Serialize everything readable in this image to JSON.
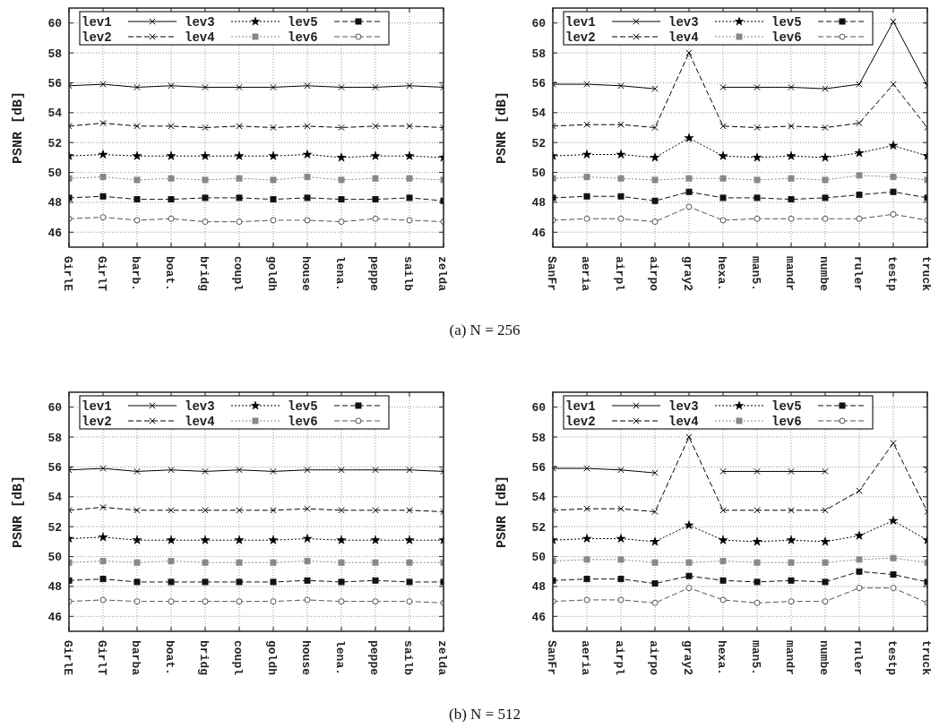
{
  "chart_data": [
    {
      "type": "line",
      "ylabel": "PSNR [dB]",
      "annotations": [
        "(a) N = 256"
      ],
      "categories": [
        "GirlE",
        "GirlT",
        "barb.",
        "boat.",
        "bridg",
        "coupl",
        "goldh",
        "house",
        "lena.",
        "peppe",
        "sailb",
        "zelda"
      ],
      "ylim": [
        45,
        61
      ],
      "yticks": [
        46,
        48,
        50,
        52,
        54,
        56,
        58,
        60
      ],
      "grid": true,
      "legend": "top left",
      "series": [
        {
          "name": "lev1",
          "color": "#000000",
          "marker": "cross",
          "line_style": "solid",
          "values": [
            55.8,
            55.9,
            55.7,
            55.8,
            55.7,
            55.7,
            55.7,
            55.8,
            55.7,
            55.7,
            55.8,
            55.7
          ]
        },
        {
          "name": "lev2",
          "color": "#000000",
          "marker": "cross",
          "line_style": "dashed",
          "values": [
            53.1,
            53.3,
            53.1,
            53.1,
            53.0,
            53.1,
            53.0,
            53.1,
            53.0,
            53.1,
            53.1,
            53.0
          ]
        },
        {
          "name": "lev3",
          "color": "#000000",
          "marker": "star",
          "line_style": "dotted",
          "values": [
            51.1,
            51.2,
            51.1,
            51.1,
            51.1,
            51.1,
            51.1,
            51.2,
            51.0,
            51.1,
            51.1,
            51.0
          ]
        },
        {
          "name": "lev4",
          "color": "#888888",
          "marker": "square",
          "line_style": "dotted",
          "values": [
            49.6,
            49.7,
            49.5,
            49.6,
            49.5,
            49.6,
            49.5,
            49.7,
            49.5,
            49.6,
            49.6,
            49.5
          ]
        },
        {
          "name": "lev5",
          "color": "#111111",
          "marker": "square",
          "line_style": "dashed",
          "values": [
            48.3,
            48.4,
            48.2,
            48.2,
            48.3,
            48.3,
            48.2,
            48.3,
            48.2,
            48.2,
            48.3,
            48.1
          ]
        },
        {
          "name": "lev6",
          "color": "#555555",
          "marker": "circle",
          "line_style": "dashed",
          "values": [
            46.9,
            47.0,
            46.8,
            46.9,
            46.7,
            46.7,
            46.8,
            46.8,
            46.7,
            46.9,
            46.8,
            46.7
          ]
        }
      ]
    },
    {
      "type": "line",
      "ylabel": "PSNR [dB]",
      "categories": [
        "SanFr",
        "aeria",
        "airpl",
        "airpo",
        "gray2",
        "hexa.",
        "man5.",
        "mandr",
        "numbe",
        "ruler",
        "testp",
        "truck"
      ],
      "ylim": [
        45,
        61
      ],
      "yticks": [
        46,
        48,
        50,
        52,
        54,
        56,
        58,
        60
      ],
      "grid": true,
      "legend": "top left",
      "series": [
        {
          "name": "lev1",
          "color": "#000000",
          "marker": "cross",
          "line_style": "solid",
          "values": [
            55.9,
            55.9,
            55.8,
            55.6,
            null,
            55.7,
            55.7,
            55.7,
            55.6,
            55.9,
            60.1,
            55.8
          ]
        },
        {
          "name": "lev2",
          "color": "#000000",
          "marker": "cross",
          "line_style": "dashed",
          "values": [
            53.1,
            53.2,
            53.2,
            53.0,
            58.0,
            53.1,
            53.0,
            53.1,
            53.0,
            53.3,
            55.9,
            53.0
          ]
        },
        {
          "name": "lev3",
          "color": "#000000",
          "marker": "star",
          "line_style": "dotted",
          "values": [
            51.1,
            51.2,
            51.2,
            51.0,
            52.3,
            51.1,
            51.0,
            51.1,
            51.0,
            51.3,
            51.8,
            51.1
          ]
        },
        {
          "name": "lev4",
          "color": "#888888",
          "marker": "square",
          "line_style": "dotted",
          "values": [
            49.6,
            49.7,
            49.6,
            49.5,
            49.6,
            49.6,
            49.5,
            49.6,
            49.5,
            49.8,
            49.7,
            49.5
          ]
        },
        {
          "name": "lev5",
          "color": "#111111",
          "marker": "square",
          "line_style": "dashed",
          "values": [
            48.3,
            48.4,
            48.4,
            48.1,
            48.7,
            48.3,
            48.3,
            48.2,
            48.3,
            48.5,
            48.7,
            48.3
          ]
        },
        {
          "name": "lev6",
          "color": "#555555",
          "marker": "circle",
          "line_style": "dashed",
          "values": [
            46.8,
            46.9,
            46.9,
            46.7,
            47.7,
            46.8,
            46.9,
            46.9,
            46.9,
            46.9,
            47.2,
            46.8
          ]
        }
      ]
    },
    {
      "type": "line",
      "ylabel": "PSNR [dB]",
      "annotations": [
        "(b) N = 512"
      ],
      "categories": [
        "GirlE",
        "GirlT",
        "barba",
        "boat.",
        "bridg",
        "coupl",
        "goldh",
        "house",
        "lena.",
        "peppe",
        "sailb",
        "zelda"
      ],
      "ylim": [
        45,
        61
      ],
      "yticks": [
        46,
        48,
        50,
        52,
        54,
        56,
        58,
        60
      ],
      "grid": true,
      "legend": "top left",
      "series": [
        {
          "name": "lev1",
          "color": "#000000",
          "marker": "cross",
          "line_style": "solid",
          "values": [
            55.8,
            55.9,
            55.7,
            55.8,
            55.7,
            55.8,
            55.7,
            55.8,
            55.8,
            55.8,
            55.8,
            55.7
          ]
        },
        {
          "name": "lev2",
          "color": "#000000",
          "marker": "cross",
          "line_style": "dashed",
          "values": [
            53.1,
            53.3,
            53.1,
            53.1,
            53.1,
            53.1,
            53.1,
            53.2,
            53.1,
            53.1,
            53.1,
            53.0
          ]
        },
        {
          "name": "lev3",
          "color": "#000000",
          "marker": "star",
          "line_style": "dotted",
          "values": [
            51.2,
            51.3,
            51.1,
            51.1,
            51.1,
            51.1,
            51.1,
            51.2,
            51.1,
            51.1,
            51.1,
            51.1
          ]
        },
        {
          "name": "lev4",
          "color": "#888888",
          "marker": "square",
          "line_style": "dotted",
          "values": [
            49.6,
            49.7,
            49.6,
            49.7,
            49.6,
            49.6,
            49.6,
            49.7,
            49.6,
            49.6,
            49.6,
            49.6
          ]
        },
        {
          "name": "lev5",
          "color": "#111111",
          "marker": "square",
          "line_style": "dashed",
          "values": [
            48.4,
            48.5,
            48.3,
            48.3,
            48.3,
            48.3,
            48.3,
            48.4,
            48.3,
            48.4,
            48.3,
            48.3
          ]
        },
        {
          "name": "lev6",
          "color": "#555555",
          "marker": "circle",
          "line_style": "dashed",
          "values": [
            47.0,
            47.1,
            47.0,
            47.0,
            47.0,
            47.0,
            47.0,
            47.1,
            47.0,
            47.0,
            47.0,
            46.9
          ]
        }
      ]
    },
    {
      "type": "line",
      "ylabel": "PSNR [dB]",
      "categories": [
        "SanFr",
        "aeria",
        "airpl",
        "airpo",
        "gray2",
        "hexa.",
        "man5.",
        "mandr",
        "numbe",
        "ruler",
        "testp",
        "truck"
      ],
      "ylim": [
        45,
        61
      ],
      "yticks": [
        46,
        48,
        50,
        52,
        54,
        56,
        58,
        60
      ],
      "grid": true,
      "legend": "top left",
      "series": [
        {
          "name": "lev1",
          "color": "#000000",
          "marker": "cross",
          "line_style": "solid",
          "values": [
            55.9,
            55.9,
            55.8,
            55.6,
            null,
            55.7,
            55.7,
            55.7,
            55.7,
            null,
            null,
            55.8
          ]
        },
        {
          "name": "lev2",
          "color": "#000000",
          "marker": "cross",
          "line_style": "dashed",
          "values": [
            53.1,
            53.2,
            53.2,
            53.0,
            58.0,
            53.1,
            53.1,
            53.1,
            53.1,
            54.4,
            57.6,
            53.0
          ]
        },
        {
          "name": "lev3",
          "color": "#000000",
          "marker": "star",
          "line_style": "dotted",
          "values": [
            51.1,
            51.2,
            51.2,
            51.0,
            52.1,
            51.1,
            51.0,
            51.1,
            51.0,
            51.4,
            52.4,
            51.1
          ]
        },
        {
          "name": "lev4",
          "color": "#888888",
          "marker": "square",
          "line_style": "dotted",
          "values": [
            49.7,
            49.8,
            49.8,
            49.6,
            49.6,
            49.7,
            49.6,
            49.6,
            49.6,
            49.8,
            49.9,
            49.6
          ]
        },
        {
          "name": "lev5",
          "color": "#111111",
          "marker": "square",
          "line_style": "dashed",
          "values": [
            48.4,
            48.5,
            48.5,
            48.2,
            48.7,
            48.4,
            48.3,
            48.4,
            48.3,
            49.0,
            48.8,
            48.3
          ]
        },
        {
          "name": "lev6",
          "color": "#555555",
          "marker": "circle",
          "line_style": "dashed",
          "values": [
            47.0,
            47.1,
            47.1,
            46.9,
            47.9,
            47.1,
            46.9,
            47.0,
            47.0,
            47.9,
            47.9,
            46.9
          ]
        }
      ]
    }
  ]
}
